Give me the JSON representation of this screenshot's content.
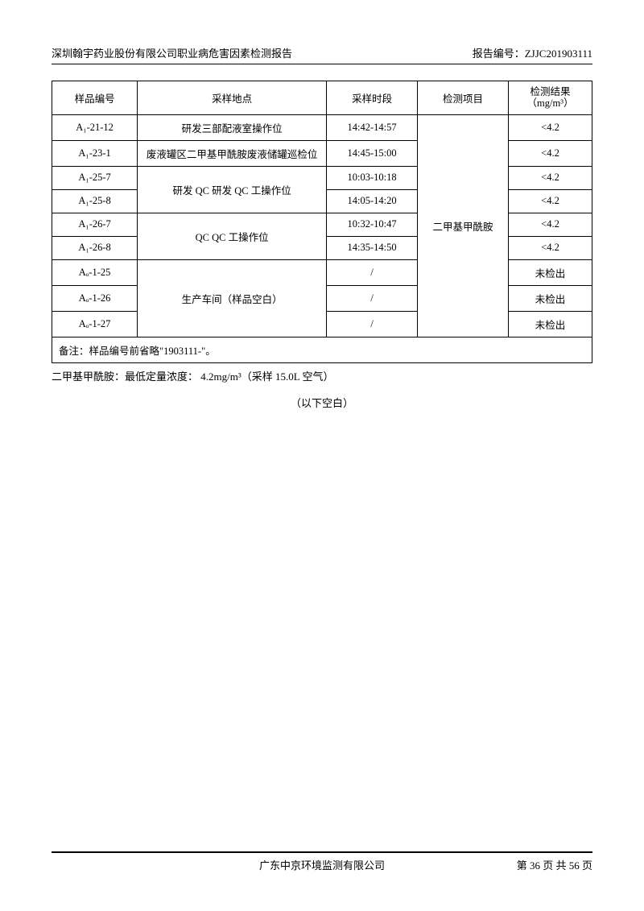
{
  "header": {
    "left": "深圳翰宇药业股份有限公司职业病危害因素检测报告",
    "right_label": "报告编号：",
    "right_value": "ZJJC201903111"
  },
  "table": {
    "headers": {
      "sample_id": "样品编号",
      "location": "采样地点",
      "time": "采样时段",
      "test_item": "检测项目",
      "result_line1": "检测结果",
      "result_line2": "（mg/m³）"
    },
    "test_item_merged": "二甲基甲酰胺",
    "rows": [
      {
        "id": "A₁-21-12",
        "loc": "研发三部配液室操作位",
        "time": "14:42-14:57",
        "result": "<4.2"
      },
      {
        "id": "A₁-23-1",
        "loc": "废液罐区二甲基甲酰胺废液储罐巡检位",
        "time": "14:45-15:00",
        "result": "<4.2"
      },
      {
        "id": "A₁-25-7",
        "loc_merged": "研发 QC 研发 QC 工操作位",
        "time": "10:03-10:18",
        "result": "<4.2"
      },
      {
        "id": "A₁-25-8",
        "time": "14:05-14:20",
        "result": "<4.2"
      },
      {
        "id": "A₁-26-7",
        "loc_merged": "QC QC 工操作位",
        "time": "10:32-10:47",
        "result": "<4.2"
      },
      {
        "id": "A₁-26-8",
        "time": "14:35-14:50",
        "result": "<4.2"
      },
      {
        "id": "Aₒ-1-25",
        "loc_merged": "生产车间（样品空白）",
        "time": "/",
        "result": "未检出"
      },
      {
        "id": "Aₒ-1-26",
        "time": "/",
        "result": "未检出"
      },
      {
        "id": "Aₒ-1-27",
        "time": "/",
        "result": "未检出"
      }
    ],
    "note": "备注：样品编号前省略\"1903111-\"。"
  },
  "below_table": "二甲基甲酰胺：最低定量浓度： 4.2mg/m³（采样 15.0L 空气）",
  "blank_notice": "（以下空白）",
  "footer": {
    "center": "广东中京环境监测有限公司",
    "page": "第 36 页 共 56 页"
  }
}
